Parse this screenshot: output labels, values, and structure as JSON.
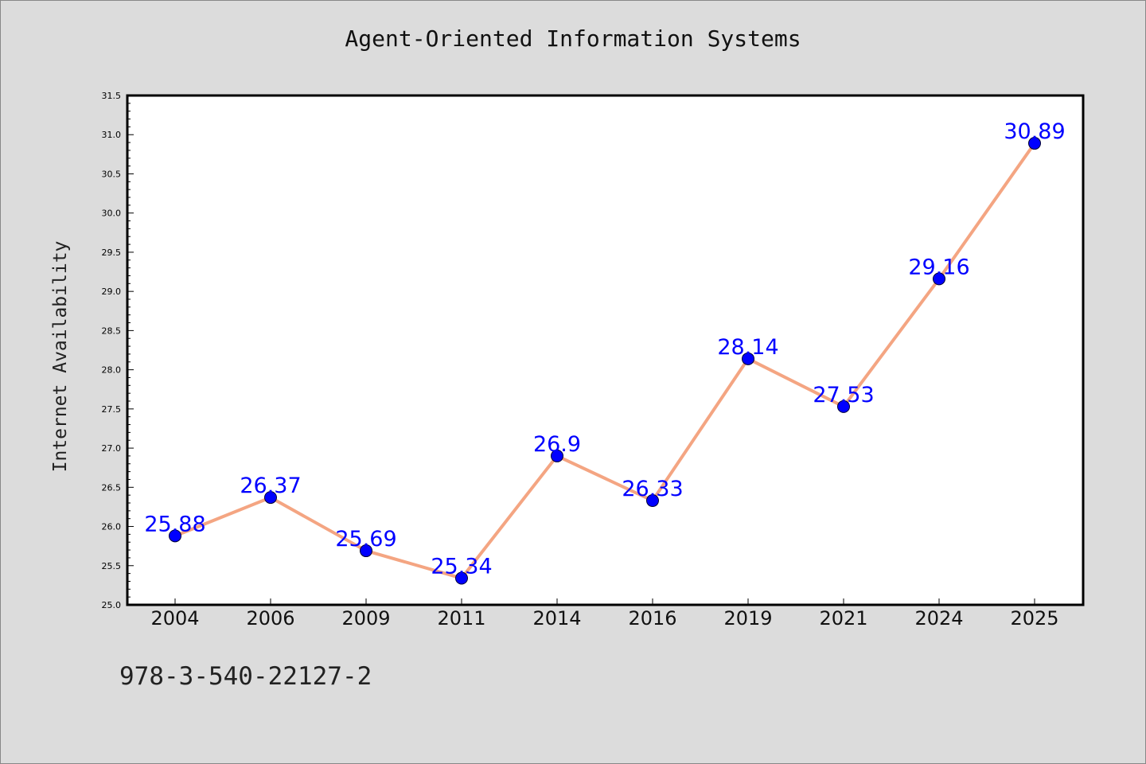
{
  "chart_data": {
    "type": "line",
    "title": "Agent-Oriented Information Systems",
    "xlabel": "",
    "ylabel": "Internet Availability",
    "categories": [
      "2004",
      "2006",
      "2009",
      "2011",
      "2014",
      "2016",
      "2019",
      "2021",
      "2024",
      "2025"
    ],
    "series": [
      {
        "values": [
          25.88,
          26.37,
          25.69,
          25.34,
          26.9,
          26.33,
          28.14,
          27.53,
          29.16,
          30.89
        ],
        "data_labels": [
          "25.88",
          "26.37",
          "25.69",
          "25.34",
          "26.9",
          "26.33",
          "28.14",
          "27.53",
          "29.16",
          "30.89"
        ]
      }
    ],
    "ylim": [
      25.0,
      31.5
    ],
    "yticks": [
      "25.0",
      "25.5",
      "26.0",
      "26.5",
      "27.0",
      "27.5",
      "28.0",
      "28.5",
      "29.0",
      "29.5",
      "30.0",
      "30.5",
      "31.0",
      "31.5"
    ],
    "grid": false,
    "colors": {
      "line": "#f4a582",
      "marker": "#0000ff",
      "data_label": "#0000ff",
      "background": "#dcdcdc",
      "plot_area": "#ffffff"
    }
  },
  "footnote": "978-3-540-22127-2"
}
